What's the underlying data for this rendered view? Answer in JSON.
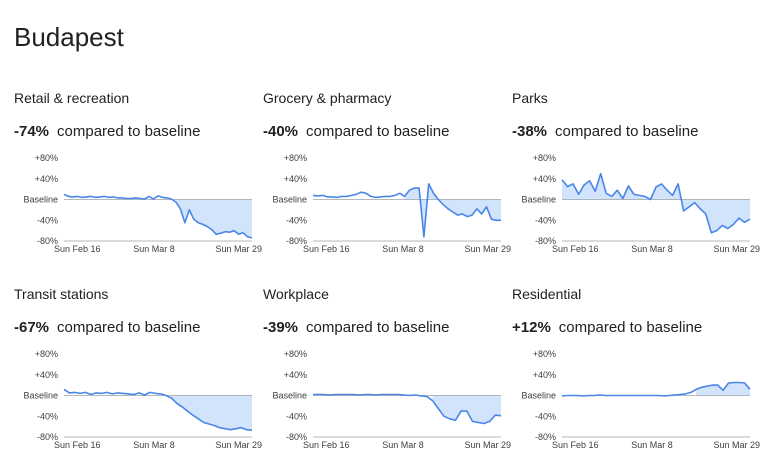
{
  "page": {
    "title": "Budapest"
  },
  "colors": {
    "line": "#4a86e8",
    "fill": "#d2e3fc",
    "axis": "#9aa0a6",
    "text": "#202124"
  },
  "chart_data": [
    {
      "type": "area",
      "title": "Retail & recreation",
      "change_value": "-74%",
      "change_label": "compared to baseline",
      "y_ticks": [
        "+80%",
        "+40%",
        "Baseline",
        "-40%",
        "-80%"
      ],
      "x_ticks": [
        "Sun Feb 16",
        "Sun Mar 8",
        "Sun Mar 29"
      ],
      "ylim": [
        -80,
        80
      ],
      "values": [
        10,
        6,
        5,
        6,
        4,
        5,
        6,
        4,
        5,
        6,
        4,
        5,
        3,
        3,
        2,
        2,
        3,
        2,
        1,
        6,
        1,
        7,
        4,
        3,
        1,
        -5,
        -18,
        -45,
        -20,
        -38,
        -45,
        -48,
        -52,
        -58,
        -67,
        -65,
        -62,
        -63,
        -60,
        -67,
        -64,
        -72,
        -74
      ]
    },
    {
      "type": "area",
      "title": "Grocery & pharmacy",
      "change_value": "-40%",
      "change_label": "compared to baseline",
      "y_ticks": [
        "+80%",
        "+40%",
        "Baseline",
        "-40%",
        "-80%"
      ],
      "x_ticks": [
        "Sun Feb 16",
        "Sun Mar 8",
        "Sun Mar 29"
      ],
      "ylim": [
        -80,
        80
      ],
      "values": [
        8,
        7,
        8,
        5,
        5,
        4,
        6,
        6,
        8,
        10,
        14,
        12,
        6,
        4,
        5,
        6,
        6,
        8,
        12,
        6,
        18,
        22,
        22,
        -72,
        30,
        12,
        0,
        -10,
        -18,
        -24,
        -30,
        -28,
        -33,
        -30,
        -18,
        -28,
        -14,
        -38,
        -40,
        -40
      ]
    },
    {
      "type": "area",
      "title": "Parks",
      "change_value": "-38%",
      "change_label": "compared to baseline",
      "y_ticks": [
        "+80%",
        "+40%",
        "Baseline",
        "-40%",
        "-80%"
      ],
      "x_ticks": [
        "Sun Feb 16",
        "Sun Mar 8",
        "Sun Mar 29"
      ],
      "ylim": [
        -80,
        80
      ],
      "values": [
        38,
        25,
        30,
        10,
        28,
        36,
        16,
        50,
        12,
        6,
        18,
        2,
        26,
        10,
        8,
        6,
        0,
        24,
        30,
        18,
        8,
        30,
        -22,
        -14,
        -6,
        -18,
        -28,
        -64,
        -60,
        -50,
        -56,
        -48,
        -36,
        -44,
        -38
      ]
    },
    {
      "type": "area",
      "title": "Transit stations",
      "change_value": "-67%",
      "change_label": "compared to baseline",
      "y_ticks": [
        "+80%",
        "+40%",
        "Baseline",
        "-40%",
        "-80%"
      ],
      "x_ticks": [
        "Sun Feb 16",
        "Sun Mar 8",
        "Sun Mar 29"
      ],
      "ylim": [
        -80,
        80
      ],
      "values": [
        12,
        5,
        6,
        4,
        6,
        2,
        5,
        4,
        6,
        3,
        5,
        4,
        3,
        2,
        5,
        1,
        6,
        4,
        3,
        0,
        -5,
        -15,
        -22,
        -30,
        -38,
        -45,
        -52,
        -55,
        -58,
        -62,
        -64,
        -66,
        -64,
        -62,
        -66,
        -67
      ]
    },
    {
      "type": "area",
      "title": "Workplace",
      "change_value": "-39%",
      "change_label": "compared to baseline",
      "y_ticks": [
        "+80%",
        "+40%",
        "Baseline",
        "-40%",
        "-80%"
      ],
      "x_ticks": [
        "Sun Feb 16",
        "Sun Mar 8",
        "Sun Mar 29"
      ],
      "ylim": [
        -80,
        80
      ],
      "values": [
        2,
        2,
        2,
        1,
        2,
        2,
        2,
        2,
        1,
        2,
        2,
        1,
        2,
        2,
        2,
        2,
        1,
        0,
        1,
        -1,
        -2,
        -10,
        -25,
        -40,
        -45,
        -48,
        -30,
        -30,
        -50,
        -52,
        -54,
        -50,
        -38,
        -39
      ]
    },
    {
      "type": "area",
      "title": "Residential",
      "change_value": "+12%",
      "change_label": "compared to baseline",
      "y_ticks": [
        "+80%",
        "+40%",
        "Baseline",
        "-40%",
        "-80%"
      ],
      "x_ticks": [
        "Sun Feb 16",
        "Sun Mar 8",
        "Sun Mar 29"
      ],
      "ylim": [
        -80,
        80
      ],
      "values": [
        -1,
        0,
        0,
        0,
        -1,
        0,
        0,
        1,
        0,
        0,
        0,
        0,
        0,
        0,
        0,
        0,
        0,
        0,
        0,
        -1,
        0,
        1,
        2,
        3,
        6,
        12,
        16,
        18,
        20,
        20,
        10,
        24,
        25,
        25,
        24,
        12
      ]
    }
  ]
}
